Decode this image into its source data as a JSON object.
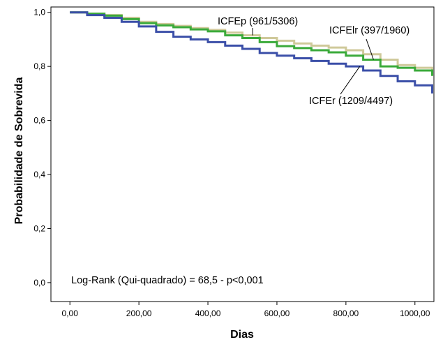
{
  "chart_data": {
    "type": "line",
    "subtype": "kaplan-meier",
    "xlabel": "Dias",
    "ylabel": "Probabilidade de Sobrevida",
    "xlim": [
      -55,
      1055
    ],
    "ylim": [
      -0.07,
      1.02
    ],
    "x_ticks": [
      0,
      200,
      400,
      600,
      800,
      1000
    ],
    "x_tick_labels": [
      "0,00",
      "200,00",
      "400,00",
      "600,00",
      "800,00",
      "1000,00"
    ],
    "y_ticks": [
      0,
      0.2,
      0.4,
      0.6,
      0.8,
      1.0
    ],
    "y_tick_labels": [
      "0,0",
      "0,2",
      "0,4",
      "0,6",
      "0,8",
      "1,0"
    ],
    "grid": false,
    "legend": "none",
    "series": [
      {
        "name": "ICFEp (961/5306)",
        "color": "#cfc99a",
        "x": [
          0,
          50,
          100,
          150,
          200,
          250,
          300,
          350,
          400,
          450,
          500,
          550,
          600,
          650,
          700,
          750,
          800,
          850,
          900,
          950,
          1000,
          1050
        ],
        "y": [
          1.0,
          0.995,
          0.99,
          0.98,
          0.965,
          0.957,
          0.95,
          0.942,
          0.935,
          0.925,
          0.915,
          0.905,
          0.895,
          0.885,
          0.877,
          0.87,
          0.86,
          0.845,
          0.825,
          0.805,
          0.795,
          0.785
        ]
      },
      {
        "name": "ICFElr (397/1960)",
        "color": "#3aaa3a",
        "x": [
          0,
          50,
          100,
          150,
          200,
          250,
          300,
          350,
          400,
          450,
          500,
          550,
          600,
          650,
          700,
          750,
          800,
          850,
          900,
          950,
          1000,
          1050
        ],
        "y": [
          1.0,
          0.995,
          0.988,
          0.975,
          0.96,
          0.952,
          0.945,
          0.937,
          0.93,
          0.915,
          0.905,
          0.89,
          0.875,
          0.868,
          0.86,
          0.852,
          0.84,
          0.825,
          0.8,
          0.795,
          0.785,
          0.765
        ]
      },
      {
        "name": "ICFEr (1209/4497)",
        "color": "#3b4fa8",
        "x": [
          0,
          50,
          100,
          150,
          200,
          250,
          300,
          350,
          400,
          450,
          500,
          550,
          600,
          650,
          700,
          750,
          800,
          850,
          900,
          950,
          1000,
          1050
        ],
        "y": [
          1.0,
          0.99,
          0.98,
          0.965,
          0.948,
          0.928,
          0.91,
          0.9,
          0.89,
          0.877,
          0.865,
          0.85,
          0.84,
          0.83,
          0.82,
          0.81,
          0.8,
          0.785,
          0.765,
          0.745,
          0.73,
          0.7
        ]
      }
    ],
    "annotations": [
      {
        "text": "ICFEp (961/5306)",
        "series": 0
      },
      {
        "text": "ICFElr (397/1960)",
        "series": 1
      },
      {
        "text": "ICFEr (1209/4497)",
        "series": 2
      },
      {
        "text": "Log-Rank (Qui-quadrado) = 68,5 - p<0,001"
      }
    ]
  }
}
